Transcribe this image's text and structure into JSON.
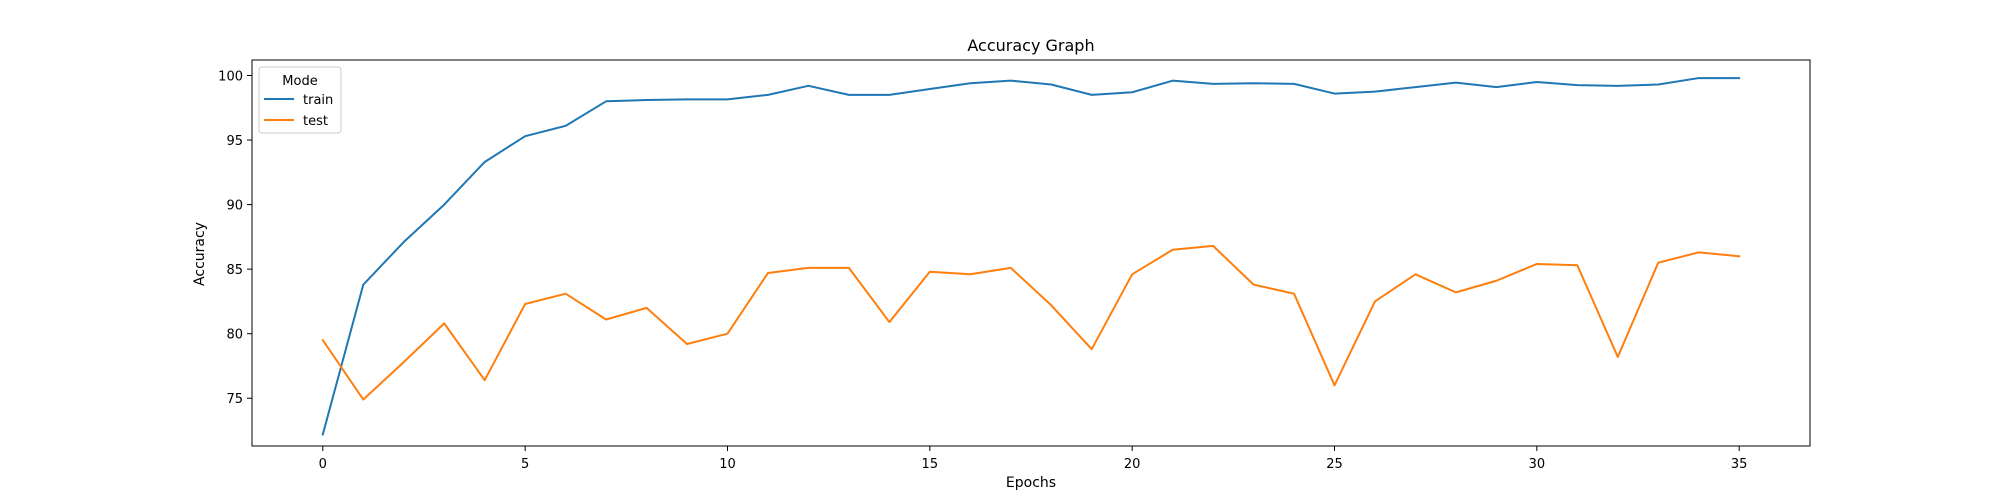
{
  "chart_data": {
    "type": "line",
    "title": "Accuracy Graph",
    "xlabel": "Epochs",
    "ylabel": "Accuracy",
    "x": [
      0,
      1,
      2,
      3,
      4,
      5,
      6,
      7,
      8,
      9,
      10,
      11,
      12,
      13,
      14,
      15,
      16,
      17,
      18,
      19,
      20,
      21,
      22,
      23,
      24,
      25,
      26,
      27,
      28,
      29,
      30,
      31,
      32,
      33,
      34,
      35
    ],
    "xlim": [
      -1.75,
      36.75
    ],
    "ylim": [
      71.3,
      101.2
    ],
    "xticks": [
      0,
      5,
      10,
      15,
      20,
      25,
      30,
      35
    ],
    "yticks": [
      75,
      80,
      85,
      90,
      95,
      100
    ],
    "grid": false,
    "legend": {
      "title": "Mode",
      "placement": "top-left"
    },
    "series": [
      {
        "name": "train",
        "color": "#1f77b4",
        "values": [
          72.2,
          83.8,
          87.1,
          90.0,
          93.3,
          95.3,
          96.1,
          98.0,
          98.1,
          98.15,
          98.15,
          98.5,
          99.2,
          98.5,
          98.5,
          98.95,
          99.4,
          99.6,
          99.3,
          98.5,
          98.7,
          99.6,
          99.35,
          99.4,
          99.35,
          98.6,
          98.75,
          99.1,
          99.45,
          99.1,
          99.5,
          99.25,
          99.2,
          99.3,
          99.8,
          99.8
        ]
      },
      {
        "name": "test",
        "color": "#ff7f0e",
        "values": [
          79.5,
          74.9,
          77.8,
          80.8,
          76.4,
          82.3,
          83.1,
          81.1,
          82.0,
          79.2,
          80.0,
          84.7,
          85.1,
          85.1,
          80.9,
          84.8,
          84.6,
          85.1,
          82.2,
          78.8,
          84.6,
          86.5,
          86.8,
          83.8,
          83.1,
          76.0,
          82.5,
          84.6,
          83.2,
          84.1,
          85.4,
          85.3,
          78.2,
          85.5,
          86.3,
          86.0
        ]
      }
    ]
  }
}
